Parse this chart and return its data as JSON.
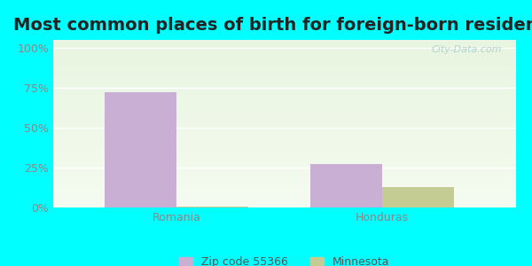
{
  "title": "Most common places of birth for foreign-born residents",
  "categories": [
    "Romania",
    "Honduras"
  ],
  "zip_values": [
    72,
    27
  ],
  "mn_values": [
    0.5,
    13
  ],
  "zip_color": "#c9afd4",
  "mn_color": "#c4cc94",
  "outer_bg": "#00ffff",
  "plot_bg_top": "#e8f5e0",
  "plot_bg_bottom": "#f5fbf0",
  "ylabel_ticks": [
    "0%",
    "25%",
    "50%",
    "75%",
    "100%"
  ],
  "ytick_vals": [
    0,
    25,
    50,
    75,
    100
  ],
  "ylim": [
    0,
    105
  ],
  "legend_label_zip": "Zip code 55366",
  "legend_label_mn": "Minnesota",
  "bar_width": 0.35,
  "title_fontsize": 14,
  "tick_fontsize": 9,
  "legend_fontsize": 9,
  "watermark": "City-Data.com"
}
